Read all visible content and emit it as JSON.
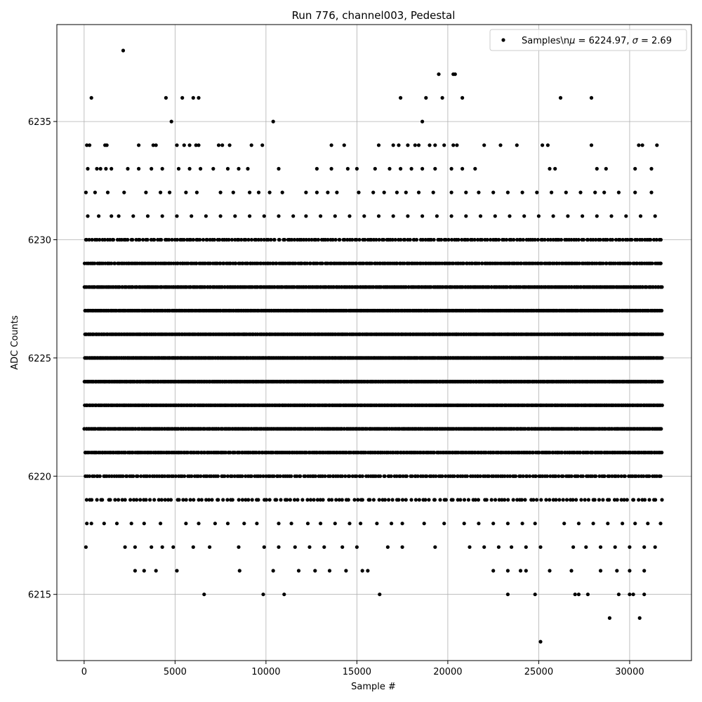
{
  "chart_data": {
    "type": "scatter",
    "title": "Run 776, channel003, Pedestal",
    "xlabel": "Sample #",
    "ylabel": "ADC Counts",
    "xlim": [
      -1500,
      33400
    ],
    "ylim": [
      6212.2,
      6239.1
    ],
    "x_ticks": [
      0,
      5000,
      10000,
      15000,
      20000,
      25000,
      30000
    ],
    "y_ticks": [
      6215,
      6220,
      6225,
      6230,
      6235
    ],
    "grid": true,
    "legend_position": "top-right",
    "marker_color": "#000000",
    "series": [
      {
        "name": "Samples\\n$\\mu$ = 6224.97, $\\sigma$ = 2.69",
        "legend_label_prefix": "Samples\\n",
        "legend_mu": "μ",
        "legend_mu_value": " = 6224.97, ",
        "legend_sigma": "σ",
        "legend_sigma_value": " = 2.69",
        "x_range": [
          0,
          31800
        ],
        "dense_levels": [
          {
            "y": 6219,
            "n": 160
          },
          {
            "y": 6220,
            "n": 260
          },
          {
            "y": 6221,
            "n": 380
          },
          {
            "y": 6222,
            "n": 460
          },
          {
            "y": 6223,
            "n": 520
          },
          {
            "y": 6224,
            "n": 560
          },
          {
            "y": 6225,
            "n": 560
          },
          {
            "y": 6226,
            "n": 540
          },
          {
            "y": 6227,
            "n": 500
          },
          {
            "y": 6228,
            "n": 440
          },
          {
            "y": 6229,
            "n": 340
          },
          {
            "y": 6230,
            "n": 240
          }
        ],
        "sparse_points": [
          [
            2150,
            6238
          ],
          [
            400,
            6236
          ],
          [
            4500,
            6236
          ],
          [
            5400,
            6236
          ],
          [
            6000,
            6236
          ],
          [
            6300,
            6236
          ],
          [
            17400,
            6236
          ],
          [
            18800,
            6236
          ],
          [
            19700,
            6236
          ],
          [
            20800,
            6236
          ],
          [
            26200,
            6236
          ],
          [
            27900,
            6236
          ],
          [
            19500,
            6237
          ],
          [
            20300,
            6237
          ],
          [
            20400,
            6237
          ],
          [
            4800,
            6235
          ],
          [
            10400,
            6235
          ],
          [
            18600,
            6235
          ],
          [
            150,
            6234
          ],
          [
            300,
            6234
          ],
          [
            1150,
            6234
          ],
          [
            1250,
            6234
          ],
          [
            3000,
            6234
          ],
          [
            3800,
            6234
          ],
          [
            3950,
            6234
          ],
          [
            5100,
            6234
          ],
          [
            5500,
            6234
          ],
          [
            5800,
            6234
          ],
          [
            6150,
            6234
          ],
          [
            6300,
            6234
          ],
          [
            7400,
            6234
          ],
          [
            7600,
            6234
          ],
          [
            8000,
            6234
          ],
          [
            9200,
            6234
          ],
          [
            9800,
            6234
          ],
          [
            13600,
            6234
          ],
          [
            14300,
            6234
          ],
          [
            16200,
            6234
          ],
          [
            17000,
            6234
          ],
          [
            17300,
            6234
          ],
          [
            17800,
            6234
          ],
          [
            18200,
            6234
          ],
          [
            18400,
            6234
          ],
          [
            19000,
            6234
          ],
          [
            19300,
            6234
          ],
          [
            19800,
            6234
          ],
          [
            20300,
            6234
          ],
          [
            20500,
            6234
          ],
          [
            22000,
            6234
          ],
          [
            22900,
            6234
          ],
          [
            23800,
            6234
          ],
          [
            25200,
            6234
          ],
          [
            25500,
            6234
          ],
          [
            27900,
            6234
          ],
          [
            30500,
            6234
          ],
          [
            30700,
            6234
          ],
          [
            31500,
            6234
          ],
          [
            200,
            6233
          ],
          [
            700,
            6233
          ],
          [
            900,
            6233
          ],
          [
            1200,
            6233
          ],
          [
            1500,
            6233
          ],
          [
            2400,
            6233
          ],
          [
            3000,
            6233
          ],
          [
            3700,
            6233
          ],
          [
            4300,
            6233
          ],
          [
            5200,
            6233
          ],
          [
            5800,
            6233
          ],
          [
            6400,
            6233
          ],
          [
            7100,
            6233
          ],
          [
            7900,
            6233
          ],
          [
            8500,
            6233
          ],
          [
            9000,
            6233
          ],
          [
            10700,
            6233
          ],
          [
            12800,
            6233
          ],
          [
            13600,
            6233
          ],
          [
            14500,
            6233
          ],
          [
            15000,
            6233
          ],
          [
            16000,
            6233
          ],
          [
            16800,
            6233
          ],
          [
            17400,
            6233
          ],
          [
            18000,
            6233
          ],
          [
            18600,
            6233
          ],
          [
            19300,
            6233
          ],
          [
            20200,
            6233
          ],
          [
            20800,
            6233
          ],
          [
            21500,
            6233
          ],
          [
            25600,
            6233
          ],
          [
            25900,
            6233
          ],
          [
            28200,
            6233
          ],
          [
            28700,
            6233
          ],
          [
            30300,
            6233
          ],
          [
            31200,
            6233
          ],
          [
            100,
            6232
          ],
          [
            600,
            6232
          ],
          [
            1300,
            6232
          ],
          [
            2200,
            6232
          ],
          [
            3400,
            6232
          ],
          [
            4200,
            6232
          ],
          [
            4700,
            6232
          ],
          [
            5600,
            6232
          ],
          [
            6200,
            6232
          ],
          [
            7500,
            6232
          ],
          [
            8200,
            6232
          ],
          [
            9100,
            6232
          ],
          [
            9600,
            6232
          ],
          [
            10200,
            6232
          ],
          [
            10900,
            6232
          ],
          [
            12200,
            6232
          ],
          [
            12800,
            6232
          ],
          [
            13400,
            6232
          ],
          [
            13900,
            6232
          ],
          [
            15100,
            6232
          ],
          [
            15900,
            6232
          ],
          [
            16500,
            6232
          ],
          [
            17200,
            6232
          ],
          [
            17700,
            6232
          ],
          [
            18400,
            6232
          ],
          [
            19200,
            6232
          ],
          [
            20200,
            6232
          ],
          [
            21000,
            6232
          ],
          [
            21700,
            6232
          ],
          [
            22500,
            6232
          ],
          [
            23300,
            6232
          ],
          [
            24100,
            6232
          ],
          [
            24900,
            6232
          ],
          [
            25700,
            6232
          ],
          [
            26500,
            6232
          ],
          [
            27300,
            6232
          ],
          [
            28100,
            6232
          ],
          [
            28600,
            6232
          ],
          [
            29400,
            6232
          ],
          [
            30300,
            6232
          ],
          [
            31200,
            6232
          ],
          [
            200,
            6231
          ],
          [
            800,
            6231
          ],
          [
            1500,
            6231
          ],
          [
            1900,
            6231
          ],
          [
            2700,
            6231
          ],
          [
            3500,
            6231
          ],
          [
            4300,
            6231
          ],
          [
            5100,
            6231
          ],
          [
            5900,
            6231
          ],
          [
            6700,
            6231
          ],
          [
            7500,
            6231
          ],
          [
            8300,
            6231
          ],
          [
            9100,
            6231
          ],
          [
            9900,
            6231
          ],
          [
            10700,
            6231
          ],
          [
            11500,
            6231
          ],
          [
            12200,
            6231
          ],
          [
            13000,
            6231
          ],
          [
            13800,
            6231
          ],
          [
            14600,
            6231
          ],
          [
            15400,
            6231
          ],
          [
            16200,
            6231
          ],
          [
            17000,
            6231
          ],
          [
            17800,
            6231
          ],
          [
            18600,
            6231
          ],
          [
            19400,
            6231
          ],
          [
            20200,
            6231
          ],
          [
            21000,
            6231
          ],
          [
            21800,
            6231
          ],
          [
            22600,
            6231
          ],
          [
            23400,
            6231
          ],
          [
            24200,
            6231
          ],
          [
            25000,
            6231
          ],
          [
            25800,
            6231
          ],
          [
            26600,
            6231
          ],
          [
            27400,
            6231
          ],
          [
            28200,
            6231
          ],
          [
            29000,
            6231
          ],
          [
            29800,
            6231
          ],
          [
            30600,
            6231
          ],
          [
            31400,
            6231
          ],
          [
            150,
            6218
          ],
          [
            400,
            6218
          ],
          [
            1100,
            6218
          ],
          [
            1800,
            6218
          ],
          [
            2600,
            6218
          ],
          [
            3300,
            6218
          ],
          [
            4200,
            6218
          ],
          [
            5600,
            6218
          ],
          [
            6300,
            6218
          ],
          [
            7200,
            6218
          ],
          [
            7900,
            6218
          ],
          [
            8800,
            6218
          ],
          [
            9500,
            6218
          ],
          [
            10700,
            6218
          ],
          [
            11400,
            6218
          ],
          [
            12300,
            6218
          ],
          [
            13000,
            6218
          ],
          [
            13800,
            6218
          ],
          [
            14600,
            6218
          ],
          [
            15200,
            6218
          ],
          [
            16100,
            6218
          ],
          [
            16900,
            6218
          ],
          [
            17500,
            6218
          ],
          [
            18700,
            6218
          ],
          [
            19800,
            6218
          ],
          [
            20900,
            6218
          ],
          [
            21700,
            6218
          ],
          [
            22500,
            6218
          ],
          [
            23300,
            6218
          ],
          [
            24100,
            6218
          ],
          [
            24800,
            6218
          ],
          [
            26400,
            6218
          ],
          [
            27200,
            6218
          ],
          [
            28000,
            6218
          ],
          [
            28800,
            6218
          ],
          [
            29600,
            6218
          ],
          [
            30300,
            6218
          ],
          [
            31000,
            6218
          ],
          [
            31700,
            6218
          ],
          [
            100,
            6217
          ],
          [
            2250,
            6217
          ],
          [
            2800,
            6217
          ],
          [
            3700,
            6217
          ],
          [
            4300,
            6217
          ],
          [
            4900,
            6217
          ],
          [
            6000,
            6217
          ],
          [
            6900,
            6217
          ],
          [
            8500,
            6217
          ],
          [
            9900,
            6217
          ],
          [
            10700,
            6217
          ],
          [
            11600,
            6217
          ],
          [
            12400,
            6217
          ],
          [
            13200,
            6217
          ],
          [
            14200,
            6217
          ],
          [
            15000,
            6217
          ],
          [
            16700,
            6217
          ],
          [
            17500,
            6217
          ],
          [
            19300,
            6217
          ],
          [
            21200,
            6217
          ],
          [
            22000,
            6217
          ],
          [
            22800,
            6217
          ],
          [
            23500,
            6217
          ],
          [
            24300,
            6217
          ],
          [
            25100,
            6217
          ],
          [
            26900,
            6217
          ],
          [
            27600,
            6217
          ],
          [
            28400,
            6217
          ],
          [
            29200,
            6217
          ],
          [
            30000,
            6217
          ],
          [
            30800,
            6217
          ],
          [
            31400,
            6217
          ],
          [
            2800,
            6216
          ],
          [
            3300,
            6216
          ],
          [
            3950,
            6216
          ],
          [
            5100,
            6216
          ],
          [
            8550,
            6216
          ],
          [
            10400,
            6216
          ],
          [
            11800,
            6216
          ],
          [
            12700,
            6216
          ],
          [
            13500,
            6216
          ],
          [
            14400,
            6216
          ],
          [
            15300,
            6216
          ],
          [
            15600,
            6216
          ],
          [
            22500,
            6216
          ],
          [
            23300,
            6216
          ],
          [
            24000,
            6216
          ],
          [
            24300,
            6216
          ],
          [
            25600,
            6216
          ],
          [
            26800,
            6216
          ],
          [
            28400,
            6216
          ],
          [
            29300,
            6216
          ],
          [
            30000,
            6216
          ],
          [
            30800,
            6216
          ],
          [
            6600,
            6215
          ],
          [
            9850,
            6215
          ],
          [
            11000,
            6215
          ],
          [
            16250,
            6215
          ],
          [
            23300,
            6215
          ],
          [
            24800,
            6215
          ],
          [
            27000,
            6215
          ],
          [
            27200,
            6215
          ],
          [
            27700,
            6215
          ],
          [
            29400,
            6215
          ],
          [
            30000,
            6215
          ],
          [
            30200,
            6215
          ],
          [
            30800,
            6215
          ],
          [
            28900,
            6214
          ],
          [
            30550,
            6214
          ],
          [
            25100,
            6213
          ]
        ]
      }
    ]
  }
}
